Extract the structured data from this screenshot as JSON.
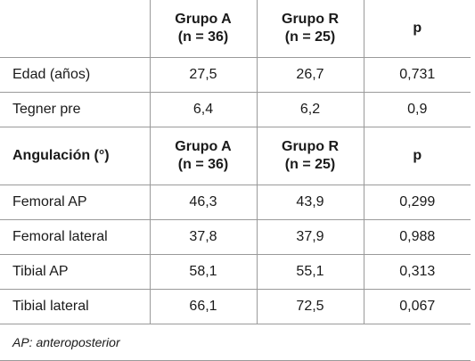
{
  "header1": {
    "col1": "",
    "col2_line1": "Grupo A",
    "col2_line2": "(n = 36)",
    "col3_line1": "Grupo R",
    "col3_line2": "(n = 25)",
    "col4": "p"
  },
  "rows1": [
    {
      "label": "Edad (años)",
      "a": "27,5",
      "r": "26,7",
      "p": "0,731"
    },
    {
      "label": "Tegner pre",
      "a": "6,4",
      "r": "6,2",
      "p": "0,9"
    }
  ],
  "header2": {
    "col1": "Angulación (°)",
    "col2_line1": "Grupo A",
    "col2_line2": "(n = 36)",
    "col3_line1": "Grupo R",
    "col3_line2": "(n = 25)",
    "col4": "p"
  },
  "rows2": [
    {
      "label": "Femoral AP",
      "a": "46,3",
      "r": "43,9",
      "p": "0,299"
    },
    {
      "label": "Femoral lateral",
      "a": "37,8",
      "r": "37,9",
      "p": "0,988"
    },
    {
      "label": "Tibial AP",
      "a": "58,1",
      "r": "55,1",
      "p": "0,313"
    },
    {
      "label": "Tibial lateral",
      "a": "66,1",
      "r": "72,5",
      "p": "0,067"
    }
  ],
  "footnote": "AP: anteroposterior"
}
